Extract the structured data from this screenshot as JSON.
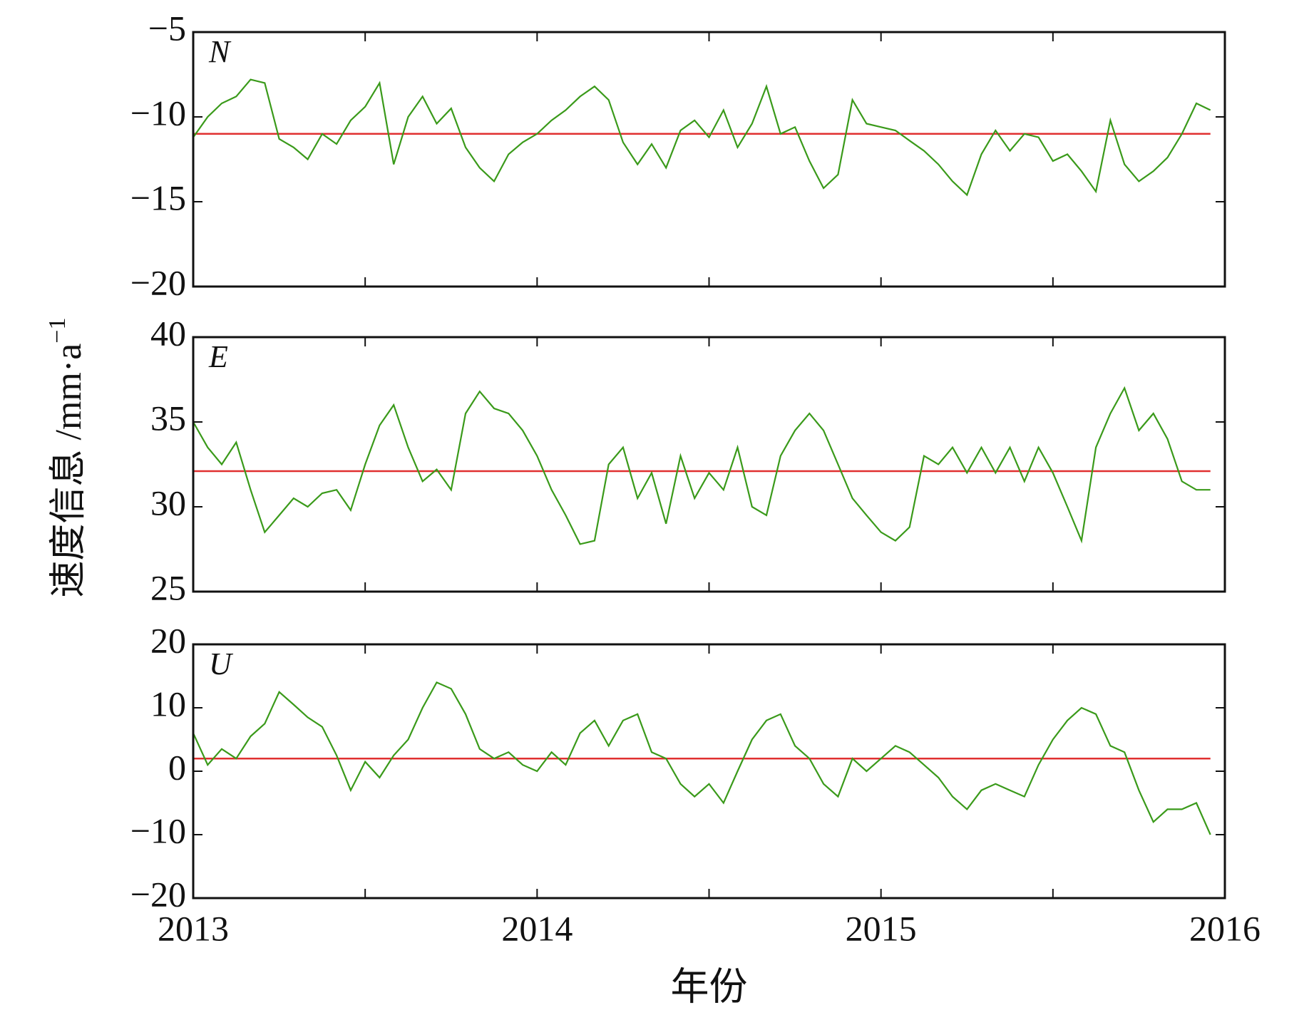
{
  "chart_data": [
    {
      "type": "line",
      "panel_label": "N",
      "x": [
        2013,
        2013.042,
        2013.083,
        2013.125,
        2013.167,
        2013.208,
        2013.25,
        2013.292,
        2013.333,
        2013.375,
        2013.417,
        2013.458,
        2013.5,
        2013.542,
        2013.583,
        2013.625,
        2013.667,
        2013.708,
        2013.75,
        2013.792,
        2013.833,
        2013.875,
        2013.917,
        2013.958,
        2014,
        2014.042,
        2014.083,
        2014.125,
        2014.167,
        2014.208,
        2014.25,
        2014.292,
        2014.333,
        2014.375,
        2014.417,
        2014.458,
        2014.5,
        2014.542,
        2014.583,
        2014.625,
        2014.667,
        2014.708,
        2014.75,
        2014.792,
        2014.833,
        2014.875,
        2014.917,
        2014.958,
        2015,
        2015.042,
        2015.083,
        2015.125,
        2015.167,
        2015.208,
        2015.25,
        2015.292,
        2015.333,
        2015.375,
        2015.417,
        2015.458,
        2015.5,
        2015.542,
        2015.583,
        2015.625,
        2015.667,
        2015.708,
        2015.75,
        2015.792,
        2015.833,
        2015.875,
        2015.917,
        2015.958
      ],
      "values": [
        -11.2,
        -10,
        -9.2,
        -8.8,
        -7.8,
        -8,
        -11.3,
        -11.8,
        -12.5,
        -11,
        -11.6,
        -10.2,
        -9.4,
        -8,
        -12.8,
        -10,
        -8.8,
        -10.4,
        -9.5,
        -11.8,
        -13,
        -13.8,
        -12.2,
        -11.5,
        -11,
        -10.2,
        -9.6,
        -8.8,
        -8.2,
        -9,
        -11.5,
        -12.8,
        -11.6,
        -13,
        -10.8,
        -10.2,
        -11.2,
        -9.6,
        -11.8,
        -10.4,
        -8.2,
        -11,
        -10.6,
        -12.6,
        -14.2,
        -13.4,
        -9,
        -10.4,
        -10.6,
        -10.8,
        -11.4,
        -12,
        -12.8,
        -13.8,
        -14.6,
        -12.2,
        -10.8,
        -12,
        -11,
        -11.2,
        -12.6,
        -12.2,
        -13.2,
        -14.4,
        -10.2,
        -12.8,
        -13.8,
        -13.2,
        -12.4,
        -11,
        -9.2,
        -9.6
      ],
      "color": "#3a9a1a",
      "mean": -11,
      "mean_color": "#e03030",
      "xlim": [
        2013,
        2016
      ],
      "xticks": [
        2013,
        2014,
        2015,
        2016
      ],
      "xminor": [
        2013.5,
        2014.5,
        2015.5
      ],
      "ylim": [
        -20,
        -5
      ],
      "yticks": [
        {
          "value": -20,
          "label": "−20"
        },
        {
          "value": -15,
          "label": "−15"
        },
        {
          "value": -10,
          "label": "−10"
        },
        {
          "value": -5,
          "label": "−5"
        }
      ]
    },
    {
      "type": "line",
      "panel_label": "E",
      "ylabel": "速度信息 /mm·a",
      "ylabel_sup": "−1",
      "x": [
        2013,
        2013.042,
        2013.083,
        2013.125,
        2013.167,
        2013.208,
        2013.25,
        2013.292,
        2013.333,
        2013.375,
        2013.417,
        2013.458,
        2013.5,
        2013.542,
        2013.583,
        2013.625,
        2013.667,
        2013.708,
        2013.75,
        2013.792,
        2013.833,
        2013.875,
        2013.917,
        2013.958,
        2014,
        2014.042,
        2014.083,
        2014.125,
        2014.167,
        2014.208,
        2014.25,
        2014.292,
        2014.333,
        2014.375,
        2014.417,
        2014.458,
        2014.5,
        2014.542,
        2014.583,
        2014.625,
        2014.667,
        2014.708,
        2014.75,
        2014.792,
        2014.833,
        2014.875,
        2014.917,
        2014.958,
        2015,
        2015.042,
        2015.083,
        2015.125,
        2015.167,
        2015.208,
        2015.25,
        2015.292,
        2015.333,
        2015.375,
        2015.417,
        2015.458,
        2015.5,
        2015.542,
        2015.583,
        2015.625,
        2015.667,
        2015.708,
        2015.75,
        2015.792,
        2015.833,
        2015.875,
        2015.917,
        2015.958
      ],
      "values": [
        35,
        33.5,
        32.5,
        33.8,
        31,
        28.5,
        29.5,
        30.5,
        30,
        30.8,
        31,
        29.8,
        32.5,
        34.8,
        36,
        33.5,
        31.5,
        32.2,
        31,
        35.5,
        36.8,
        35.8,
        35.5,
        34.5,
        33,
        31,
        29.5,
        27.8,
        28,
        32.5,
        33.5,
        30.5,
        32,
        29,
        33,
        30.5,
        32,
        31,
        33.5,
        30,
        29.5,
        33,
        34.5,
        35.5,
        34.5,
        32.5,
        30.5,
        29.5,
        28.5,
        28,
        28.8,
        33,
        32.5,
        33.5,
        32,
        33.5,
        32,
        33.5,
        31.5,
        33.5,
        32,
        30,
        28,
        33.5,
        35.5,
        37,
        34.5,
        35.5,
        34,
        31.5,
        31,
        31
      ],
      "color": "#3a9a1a",
      "mean": 32.1,
      "mean_color": "#e03030",
      "xlim": [
        2013,
        2016
      ],
      "xticks": [
        2013,
        2014,
        2015,
        2016
      ],
      "xminor": [
        2013.5,
        2014.5,
        2015.5
      ],
      "ylim": [
        25,
        40
      ],
      "yticks": [
        25,
        30,
        35,
        40
      ]
    },
    {
      "type": "line",
      "panel_label": "U",
      "xlabel": "年份",
      "xticklabels": true,
      "x": [
        2013,
        2013.042,
        2013.083,
        2013.125,
        2013.167,
        2013.208,
        2013.25,
        2013.292,
        2013.333,
        2013.375,
        2013.417,
        2013.458,
        2013.5,
        2013.542,
        2013.583,
        2013.625,
        2013.667,
        2013.708,
        2013.75,
        2013.792,
        2013.833,
        2013.875,
        2013.917,
        2013.958,
        2014,
        2014.042,
        2014.083,
        2014.125,
        2014.167,
        2014.208,
        2014.25,
        2014.292,
        2014.333,
        2014.375,
        2014.417,
        2014.458,
        2014.5,
        2014.542,
        2014.583,
        2014.625,
        2014.667,
        2014.708,
        2014.75,
        2014.792,
        2014.833,
        2014.875,
        2014.917,
        2014.958,
        2015,
        2015.042,
        2015.083,
        2015.125,
        2015.167,
        2015.208,
        2015.25,
        2015.292,
        2015.333,
        2015.375,
        2015.417,
        2015.458,
        2015.5,
        2015.542,
        2015.583,
        2015.625,
        2015.667,
        2015.708,
        2015.75,
        2015.792,
        2015.833,
        2015.875,
        2015.917,
        2015.958
      ],
      "values": [
        6,
        1,
        3.5,
        2,
        5.5,
        7.5,
        12.5,
        10.5,
        8.5,
        7,
        2.5,
        -3,
        1.5,
        -1,
        2.5,
        5,
        10,
        14,
        13,
        9,
        3.5,
        2,
        3,
        1,
        0,
        3,
        1,
        6,
        8,
        4,
        8,
        9,
        3,
        2,
        -2,
        -4,
        -2,
        -5,
        0,
        5,
        8,
        9,
        4,
        2,
        -2,
        -4,
        2,
        0,
        2,
        4,
        3,
        1,
        -1,
        -4,
        -6,
        -3,
        -2,
        -3,
        -4,
        1,
        5,
        8,
        10,
        9,
        4,
        3,
        -3,
        -8,
        -6,
        -6,
        -5,
        -10
      ],
      "color": "#3a9a1a",
      "mean": 2,
      "mean_color": "#e03030",
      "xlim": [
        2013,
        2016
      ],
      "xticks": [
        2013,
        2014,
        2015,
        2016
      ],
      "xminor": [
        2013.5,
        2014.5,
        2015.5
      ],
      "ylim": [
        -20,
        20
      ],
      "yticks": [
        {
          "value": -20,
          "label": "−20"
        },
        {
          "value": -10,
          "label": "−10"
        },
        0,
        10,
        20
      ]
    }
  ]
}
